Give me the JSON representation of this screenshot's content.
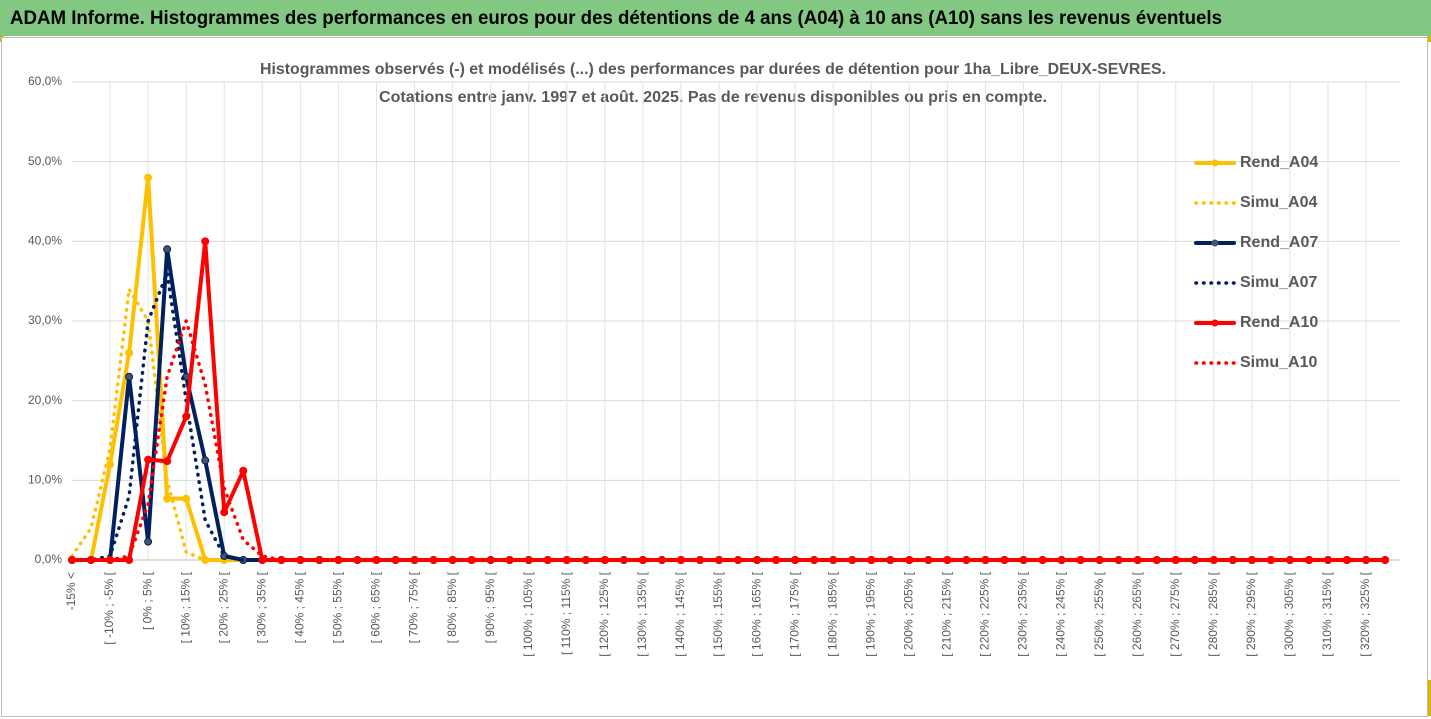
{
  "header": {
    "title": "ADAM Informe. Histogrammes des performances en euros pour des détentions de 4 ans (A04) à 10 ans (A10) sans les revenus éventuels"
  },
  "chart_data": {
    "type": "line",
    "title": "Histogrammes observés (-) et modélisés (...) des performances par durées de détention pour 1ha_Libre_DEUX-SEVRES.",
    "subtitle": "Cotations entre janv. 1997 et août. 2025. Pas de revenus disponibles ou pris en compte.",
    "categories": [
      "-15% <",
      null,
      "[ -10% ; -5% [",
      null,
      "[ 0% ; 5% [",
      null,
      "[ 10% ; 15% [",
      null,
      "[ 20% ; 25% [",
      null,
      "[ 30% ; 35% [",
      null,
      "[ 40% ; 45% [",
      null,
      "[ 50% ; 55% [",
      null,
      "[ 60% ; 65% [",
      null,
      "[ 70% ; 75% [",
      null,
      "[ 80% ; 85% [",
      null,
      "[ 90% ; 95% [",
      null,
      "[ 100% ; 105% [",
      null,
      "[ 110% ; 115% [",
      null,
      "[ 120% ; 125% [",
      null,
      "[ 130% ; 135% [",
      null,
      "[ 140% ; 145% [",
      null,
      "[ 150% ; 155% [",
      null,
      "[ 160% ; 165% [",
      null,
      "[ 170% ; 175% [",
      null,
      "[ 180% ; 185% [",
      null,
      "[ 190% ; 195% [",
      null,
      "[ 200% ; 205% [",
      null,
      "[ 210% ; 215% [",
      null,
      "[ 220% ; 225% [",
      null,
      "[ 230% ; 235% [",
      null,
      "[ 240% ; 245% [",
      null,
      "[ 250% ; 255% [",
      null,
      "[ 260% ; 265% [",
      null,
      "[ 270% ; 275% [",
      null,
      "[ 280% ; 285% [",
      null,
      "[ 290% ; 295% [",
      null,
      "[ 300% ; 305% [",
      null,
      "[ 310% ; 315% [",
      null,
      "[ 320% ; 325% [",
      null
    ],
    "series": [
      {
        "name": "Rend_A04",
        "color": "#ffc000",
        "dashed": false,
        "markers": true,
        "values": [
          0,
          0,
          12,
          26,
          48,
          7.7,
          7.7,
          0,
          0,
          0,
          0,
          0,
          0,
          0,
          0,
          0,
          0,
          0,
          0,
          0,
          0,
          0,
          0,
          0,
          0,
          0,
          0,
          0,
          0,
          0,
          0,
          0,
          0,
          0,
          0,
          0,
          0,
          0,
          0,
          0,
          0,
          0,
          0,
          0,
          0,
          0,
          0,
          0,
          0,
          0,
          0,
          0,
          0,
          0,
          0,
          0,
          0,
          0,
          0,
          0,
          0,
          0,
          0,
          0,
          0,
          0,
          0,
          0,
          0,
          0
        ]
      },
      {
        "name": "Simu_A04",
        "color": "#ffc000",
        "dashed": true,
        "markers": false,
        "values": [
          0.5,
          4,
          14,
          34,
          30,
          10,
          1,
          0,
          0,
          0,
          0,
          0,
          0,
          0,
          0,
          0,
          0,
          0,
          0,
          0,
          0,
          0,
          0,
          0,
          0,
          0,
          0,
          0,
          0,
          0,
          0,
          0,
          0,
          0,
          0,
          0,
          0,
          0,
          0,
          0,
          0,
          0,
          0,
          0,
          0,
          0,
          0,
          0,
          0,
          0,
          0,
          0,
          0,
          0,
          0,
          0,
          0,
          0,
          0,
          0,
          0,
          0,
          0,
          0,
          0,
          0,
          0,
          0,
          0,
          0
        ]
      },
      {
        "name": "Rend_A07",
        "color": "#002060",
        "dashed": false,
        "markers": true,
        "values": [
          0,
          0,
          0,
          23,
          2.3,
          39,
          23,
          12.5,
          0.5,
          0,
          0,
          0,
          0,
          0,
          0,
          0,
          0,
          0,
          0,
          0,
          0,
          0,
          0,
          0,
          0,
          0,
          0,
          0,
          0,
          0,
          0,
          0,
          0,
          0,
          0,
          0,
          0,
          0,
          0,
          0,
          0,
          0,
          0,
          0,
          0,
          0,
          0,
          0,
          0,
          0,
          0,
          0,
          0,
          0,
          0,
          0,
          0,
          0,
          0,
          0,
          0,
          0,
          0,
          0,
          0,
          0,
          0,
          0,
          0,
          0
        ]
      },
      {
        "name": "Simu_A07",
        "color": "#002060",
        "dashed": true,
        "markers": false,
        "values": [
          0,
          0,
          0.5,
          8,
          30,
          36,
          20,
          5,
          0.5,
          0,
          0,
          0,
          0,
          0,
          0,
          0,
          0,
          0,
          0,
          0,
          0,
          0,
          0,
          0,
          0,
          0,
          0,
          0,
          0,
          0,
          0,
          0,
          0,
          0,
          0,
          0,
          0,
          0,
          0,
          0,
          0,
          0,
          0,
          0,
          0,
          0,
          0,
          0,
          0,
          0,
          0,
          0,
          0,
          0,
          0,
          0,
          0,
          0,
          0,
          0,
          0,
          0,
          0,
          0,
          0,
          0,
          0,
          0,
          0,
          0
        ]
      },
      {
        "name": "Rend_A10",
        "color": "#ff0000",
        "dashed": false,
        "markers": true,
        "values": [
          0,
          0,
          0,
          0,
          12.6,
          12.4,
          18,
          40,
          6,
          11.2,
          0,
          0,
          0,
          0,
          0,
          0,
          0,
          0,
          0,
          0,
          0,
          0,
          0,
          0,
          0,
          0,
          0,
          0,
          0,
          0,
          0,
          0,
          0,
          0,
          0,
          0,
          0,
          0,
          0,
          0,
          0,
          0,
          0,
          0,
          0,
          0,
          0,
          0,
          0,
          0,
          0,
          0,
          0,
          0,
          0,
          0,
          0,
          0,
          0,
          0,
          0,
          0,
          0,
          0,
          0,
          0,
          0,
          0,
          0,
          0
        ]
      },
      {
        "name": "Simu_A10",
        "color": "#ff0000",
        "dashed": true,
        "markers": false,
        "values": [
          0,
          0,
          0,
          0.5,
          7,
          23,
          30,
          22,
          9,
          2.5,
          0.5,
          0,
          0,
          0,
          0,
          0,
          0,
          0,
          0,
          0,
          0,
          0,
          0,
          0,
          0,
          0,
          0,
          0,
          0,
          0,
          0,
          0,
          0,
          0,
          0,
          0,
          0,
          0,
          0,
          0,
          0,
          0,
          0,
          0,
          0,
          0,
          0,
          0,
          0,
          0,
          0,
          0,
          0,
          0,
          0,
          0,
          0,
          0,
          0,
          0,
          0,
          0,
          0,
          0,
          0,
          0,
          0,
          0,
          0,
          0
        ]
      }
    ],
    "ylim": [
      0,
      60
    ],
    "yticks": [
      {
        "value": 0,
        "label": "0,0%"
      },
      {
        "value": 10,
        "label": "10,0%"
      },
      {
        "value": 20,
        "label": "20,0%"
      },
      {
        "value": 30,
        "label": "30,0%"
      },
      {
        "value": 40,
        "label": "40,0%"
      },
      {
        "value": 50,
        "label": "50,0%"
      },
      {
        "value": 60,
        "label": "60,0%"
      }
    ],
    "grid": true,
    "legend": "right"
  }
}
